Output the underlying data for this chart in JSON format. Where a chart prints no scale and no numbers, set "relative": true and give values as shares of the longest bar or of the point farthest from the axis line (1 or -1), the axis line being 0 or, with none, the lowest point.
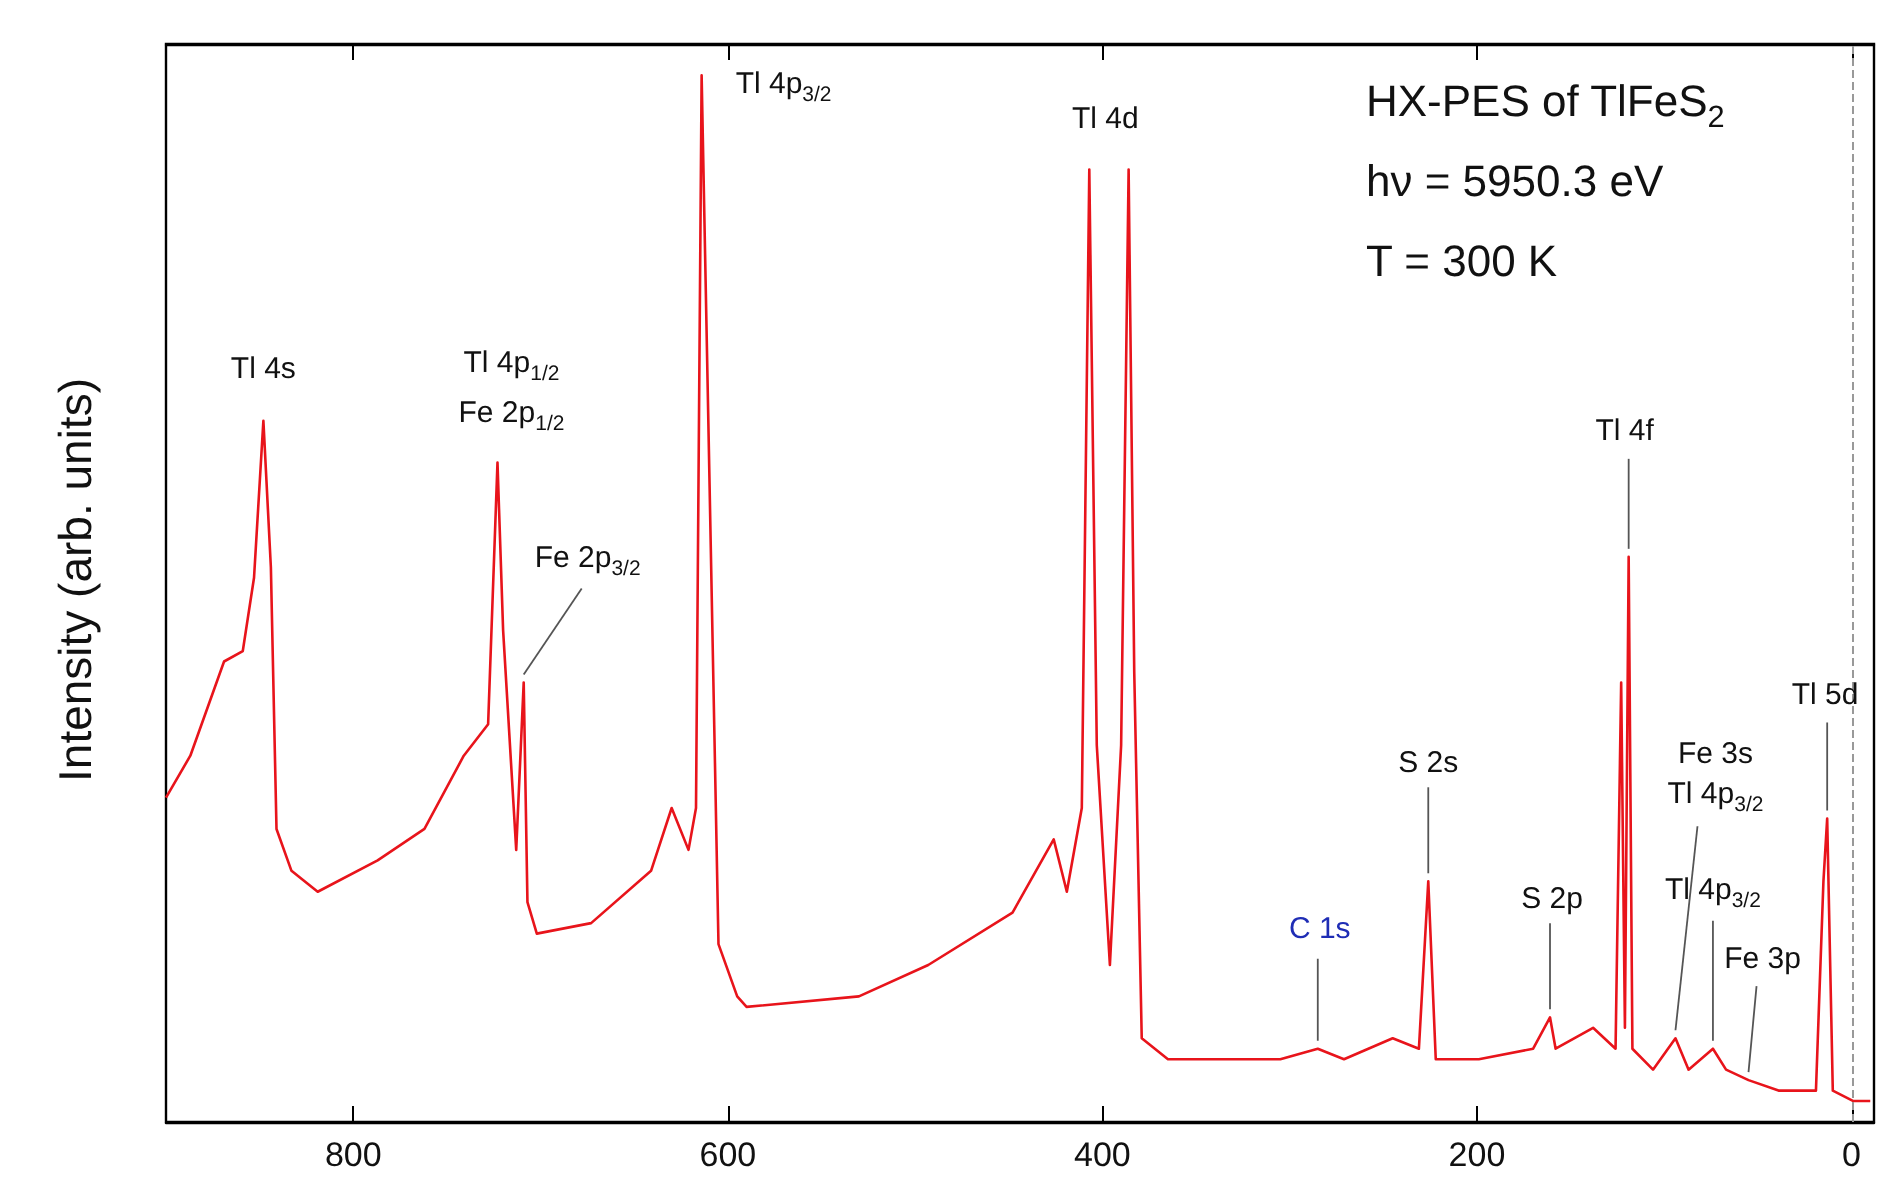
{
  "chart_data": {
    "type": "line",
    "relative": true,
    "ylabel": "Intensity (arb. units)",
    "xlim": [
      900,
      -12
    ],
    "xticks": [
      800,
      600,
      400,
      200,
      0
    ],
    "grid": false,
    "marker": "none",
    "line_style": "solid",
    "ref_lines": [
      {
        "axis": "x",
        "value": 0,
        "color": "#999999",
        "line_style": "dashed"
      }
    ],
    "series": [
      {
        "color": "#e8141b",
        "x": [
          900,
          887,
          869,
          859,
          853,
          848,
          844,
          841,
          833,
          819,
          787,
          762,
          741,
          728,
          723,
          720,
          713,
          709,
          707,
          702,
          673,
          641,
          630,
          621,
          617,
          614,
          605,
          595,
          590,
          530,
          493,
          448,
          426,
          419,
          411,
          407,
          403,
          396,
          390,
          386,
          383,
          379,
          365,
          305,
          285,
          271,
          245,
          231,
          226,
          222,
          199,
          170,
          161,
          158,
          138,
          126,
          123,
          121,
          119,
          117,
          106,
          94,
          87,
          74,
          67,
          55,
          39,
          19,
          15,
          13,
          10,
          -1,
          -10
        ],
        "values": [
          0.31,
          0.35,
          0.44,
          0.45,
          0.52,
          0.67,
          0.53,
          0.28,
          0.24,
          0.22,
          0.25,
          0.28,
          0.35,
          0.38,
          0.63,
          0.47,
          0.26,
          0.42,
          0.21,
          0.18,
          0.19,
          0.24,
          0.3,
          0.26,
          0.3,
          1.0,
          0.17,
          0.12,
          0.11,
          0.12,
          0.15,
          0.2,
          0.27,
          0.22,
          0.3,
          0.91,
          0.36,
          0.15,
          0.36,
          0.91,
          0.43,
          0.08,
          0.06,
          0.06,
          0.07,
          0.06,
          0.08,
          0.07,
          0.23,
          0.06,
          0.06,
          0.07,
          0.1,
          0.07,
          0.09,
          0.07,
          0.42,
          0.09,
          0.54,
          0.07,
          0.05,
          0.08,
          0.05,
          0.07,
          0.05,
          0.04,
          0.03,
          0.03,
          0.23,
          0.29,
          0.03,
          0.02,
          0.02
        ]
      }
    ],
    "annotations": [
      {
        "text": "Tl 4s",
        "x": 848,
        "y": 0.67
      },
      {
        "text": "Tl 4p$_{1/2}$\nFe 2p$_{1/2}$",
        "x": 723,
        "y": 0.63
      },
      {
        "text": "Fe 2p$_{3/2}$",
        "x": 709,
        "y": 0.42
      },
      {
        "text": "Tl 4p$_{3/2}$",
        "x": 614,
        "y": 1.0
      },
      {
        "text": "Tl 4d",
        "x": 407,
        "y": 0.91
      },
      {
        "text": "C 1s",
        "x": 285,
        "y": 0.07
      },
      {
        "text": "S 2s",
        "x": 226,
        "y": 0.23
      },
      {
        "text": "S 2p",
        "x": 161,
        "y": 0.1
      },
      {
        "text": "Tl 4f",
        "x": 119,
        "y": 0.54
      },
      {
        "text": "Fe 3s\nTl 4p$_{3/2}$",
        "x": 94,
        "y": 0.08
      },
      {
        "text": "Tl 4p$_{3/2}$",
        "x": 74,
        "y": 0.07
      },
      {
        "text": "Fe 3p",
        "x": 55,
        "y": 0.04
      },
      {
        "text": "Tl 5d",
        "x": 13,
        "y": 0.29
      },
      "HX-PES of TlFeS$_{2}$",
      "hν = 5950.3 eV",
      "T = 300 K"
    ]
  }
}
